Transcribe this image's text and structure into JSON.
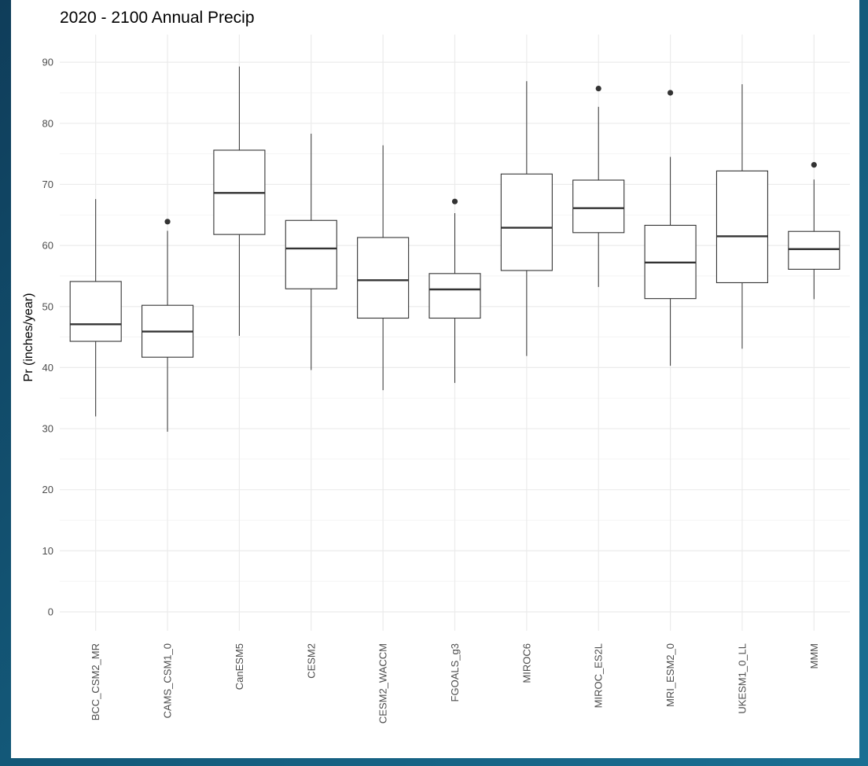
{
  "chart_data": {
    "type": "box",
    "title": "2020 - 2100 Annual Precip",
    "xlabel": "",
    "ylabel": "Pr (inches/year)",
    "ylim": [
      -3,
      94
    ],
    "yticks": [
      0,
      10,
      20,
      30,
      40,
      50,
      60,
      70,
      80,
      90
    ],
    "grid": true,
    "categories": [
      "BCC_CSM2_MR",
      "CAMS_CSM1_0",
      "CanESM5",
      "CESM2",
      "CESM2_WACCM",
      "FGOALS_g3",
      "MIROC6",
      "MIROC_ES2L",
      "MRI_ESM2_0",
      "UKESM1_0_LL",
      "MMM"
    ],
    "boxes": [
      {
        "min": 32.0,
        "q1": 44.3,
        "median": 47.1,
        "q3": 54.1,
        "max": 67.6,
        "outliers": []
      },
      {
        "min": 29.5,
        "q1": 41.7,
        "median": 45.9,
        "q3": 50.2,
        "max": 62.4,
        "outliers": [
          63.9
        ]
      },
      {
        "min": 45.2,
        "q1": 61.8,
        "median": 68.6,
        "q3": 75.6,
        "max": 89.3,
        "outliers": []
      },
      {
        "min": 39.6,
        "q1": 52.9,
        "median": 59.5,
        "q3": 64.1,
        "max": 78.3,
        "outliers": []
      },
      {
        "min": 36.3,
        "q1": 48.1,
        "median": 54.3,
        "q3": 61.3,
        "max": 76.4,
        "outliers": []
      },
      {
        "min": 37.5,
        "q1": 48.1,
        "median": 52.8,
        "q3": 55.4,
        "max": 65.3,
        "outliers": [
          67.2
        ]
      },
      {
        "min": 41.9,
        "q1": 55.9,
        "median": 62.9,
        "q3": 71.7,
        "max": 86.9,
        "outliers": []
      },
      {
        "min": 53.2,
        "q1": 62.1,
        "median": 66.1,
        "q3": 70.7,
        "max": 82.7,
        "outliers": [
          85.7
        ]
      },
      {
        "min": 40.3,
        "q1": 51.3,
        "median": 57.2,
        "q3": 63.3,
        "max": 74.5,
        "outliers": [
          85.0
        ]
      },
      {
        "min": 43.1,
        "q1": 53.9,
        "median": 61.5,
        "q3": 72.2,
        "max": 86.4,
        "outliers": []
      },
      {
        "min": 51.2,
        "q1": 56.1,
        "median": 59.4,
        "q3": 62.3,
        "max": 70.8,
        "outliers": [
          73.2
        ]
      }
    ]
  }
}
